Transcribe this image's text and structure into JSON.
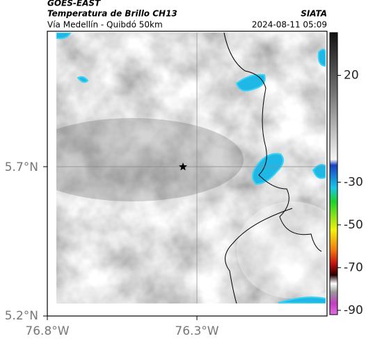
{
  "header": {
    "agency": "GOES-EAST",
    "product": "Temperatura de Brillo CH13",
    "region": "Vía Medellín - Quibdó 50km",
    "source": "SIATA",
    "datetime": "2024-08-11 05:09"
  },
  "map": {
    "lat_labels": [
      "5.7°N",
      "5.2°N"
    ],
    "lon_labels": [
      "76.8°W",
      "76.3°W"
    ]
  },
  "colorbar": {
    "lim": [
      -92,
      40
    ],
    "ticks": [
      20,
      -30,
      -50,
      -70,
      -90
    ]
  }
}
